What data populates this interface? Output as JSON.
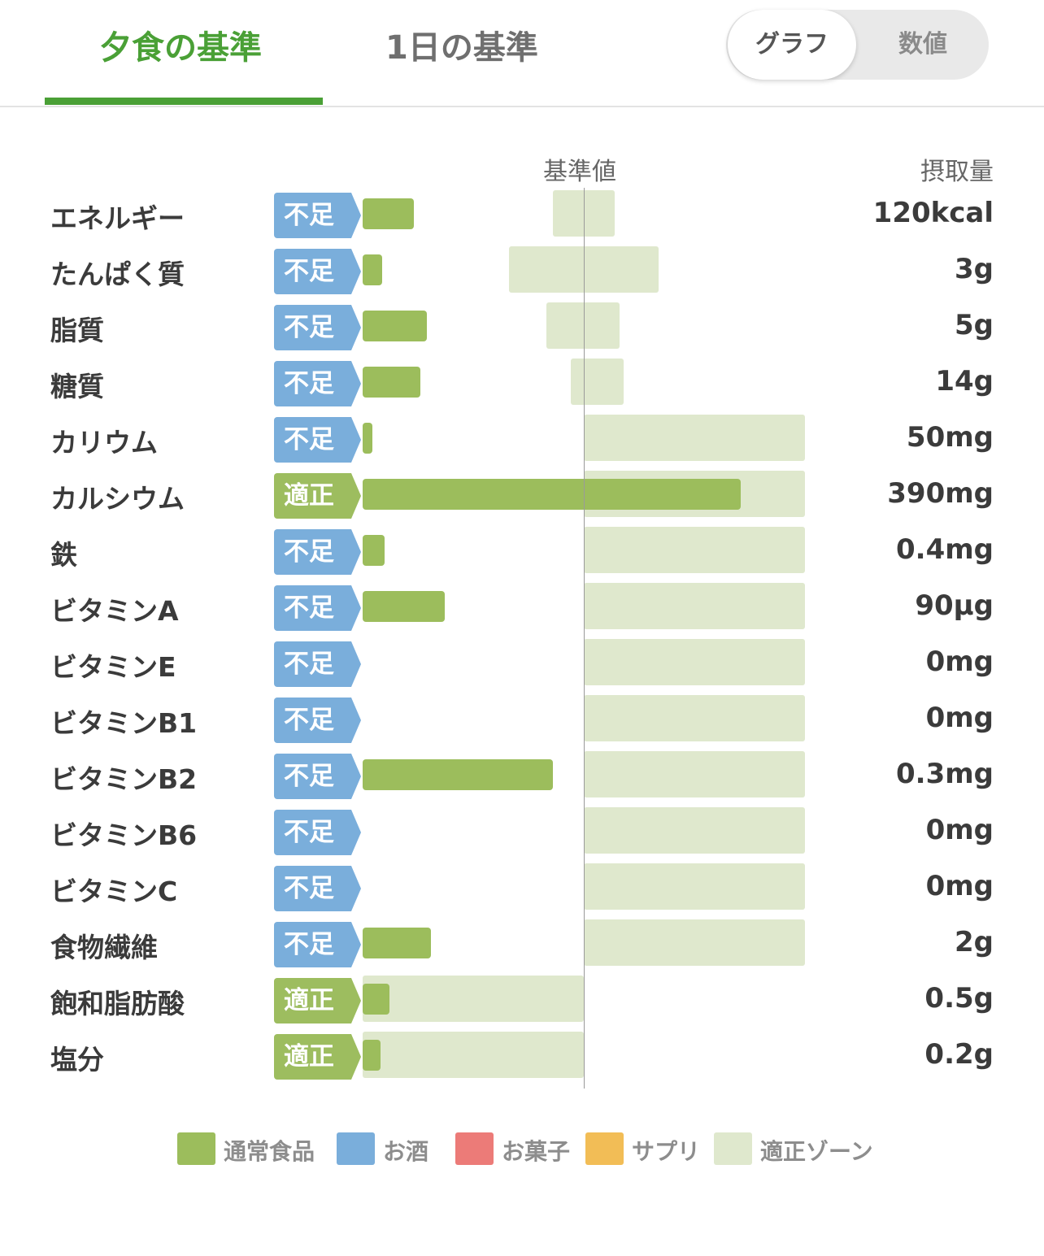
{
  "tabs": {
    "dinner": "夕食の基準",
    "day": "1日の基準"
  },
  "toggle": {
    "graph": "グラフ",
    "numeric": "数値"
  },
  "columns": {
    "standard": "基準値",
    "intake": "摂取量"
  },
  "colors": {
    "accent": "#4aa036",
    "badge_low": "#7aaedb",
    "badge_ok": "#9dbd5f",
    "bar": "#9cbd5c",
    "zone": "#dfe8cd"
  },
  "rows": [
    {
      "name": "エネルギー",
      "status": "不足",
      "status_class": "low",
      "value": "120kcal",
      "level": 0.23,
      "zone": [
        0.86,
        1.14
      ]
    },
    {
      "name": "たんぱく質",
      "status": "不足",
      "status_class": "low",
      "value": "3g",
      "level": 0.09,
      "zone": [
        0.66,
        1.34
      ]
    },
    {
      "name": "脂質",
      "status": "不足",
      "status_class": "low",
      "value": "5g",
      "level": 0.29,
      "zone": [
        0.83,
        1.16
      ]
    },
    {
      "name": "糖質",
      "status": "不足",
      "status_class": "low",
      "value": "14g",
      "level": 0.26,
      "zone": [
        0.94,
        1.18
      ]
    },
    {
      "name": "カリウム",
      "status": "不足",
      "status_class": "low",
      "value": "50mg",
      "level": 0.04,
      "zone": [
        1.0,
        2.0
      ]
    },
    {
      "name": "カルシウム",
      "status": "適正",
      "status_class": "ok",
      "value": "390mg",
      "level": 1.71,
      "zone": [
        1.0,
        2.0
      ]
    },
    {
      "name": "鉄",
      "status": "不足",
      "status_class": "low",
      "value": "0.4mg",
      "level": 0.1,
      "zone": [
        1.0,
        2.0
      ]
    },
    {
      "name": "ビタミンA",
      "status": "不足",
      "status_class": "low",
      "value": "90µg",
      "level": 0.37,
      "zone": [
        1.0,
        2.0
      ]
    },
    {
      "name": "ビタミンE",
      "status": "不足",
      "status_class": "low",
      "value": "0mg",
      "level": 0,
      "zone": [
        1.0,
        2.0
      ]
    },
    {
      "name": "ビタミンB1",
      "status": "不足",
      "status_class": "low",
      "value": "0mg",
      "level": 0,
      "zone": [
        1.0,
        2.0
      ]
    },
    {
      "name": "ビタミンB2",
      "status": "不足",
      "status_class": "low",
      "value": "0.3mg",
      "level": 0.86,
      "zone": [
        1.0,
        2.0
      ]
    },
    {
      "name": "ビタミンB6",
      "status": "不足",
      "status_class": "low",
      "value": "0mg",
      "level": 0,
      "zone": [
        1.0,
        2.0
      ]
    },
    {
      "name": "ビタミンC",
      "status": "不足",
      "status_class": "low",
      "value": "0mg",
      "level": 0,
      "zone": [
        1.0,
        2.0
      ]
    },
    {
      "name": "食物繊維",
      "status": "不足",
      "status_class": "low",
      "value": "2g",
      "level": 0.31,
      "zone": [
        1.0,
        2.0
      ]
    },
    {
      "name": "飽和脂肪酸",
      "status": "適正",
      "status_class": "ok",
      "value": "0.5g",
      "level": 0.12,
      "zone": [
        0.0,
        1.0
      ]
    },
    {
      "name": "塩分",
      "status": "適正",
      "status_class": "ok",
      "value": "0.2g",
      "level": 0.08,
      "zone": [
        0.0,
        1.0
      ]
    }
  ],
  "legend": [
    {
      "label": "通常食品",
      "color": "#9cbd5c"
    },
    {
      "label": "お酒",
      "color": "#7aaedb"
    },
    {
      "label": "お菓子",
      "color": "#ec7b78"
    },
    {
      "label": "サプリ",
      "color": "#f2bd56"
    },
    {
      "label": "適正ゾーン",
      "color": "#dfe8cd"
    }
  ]
}
